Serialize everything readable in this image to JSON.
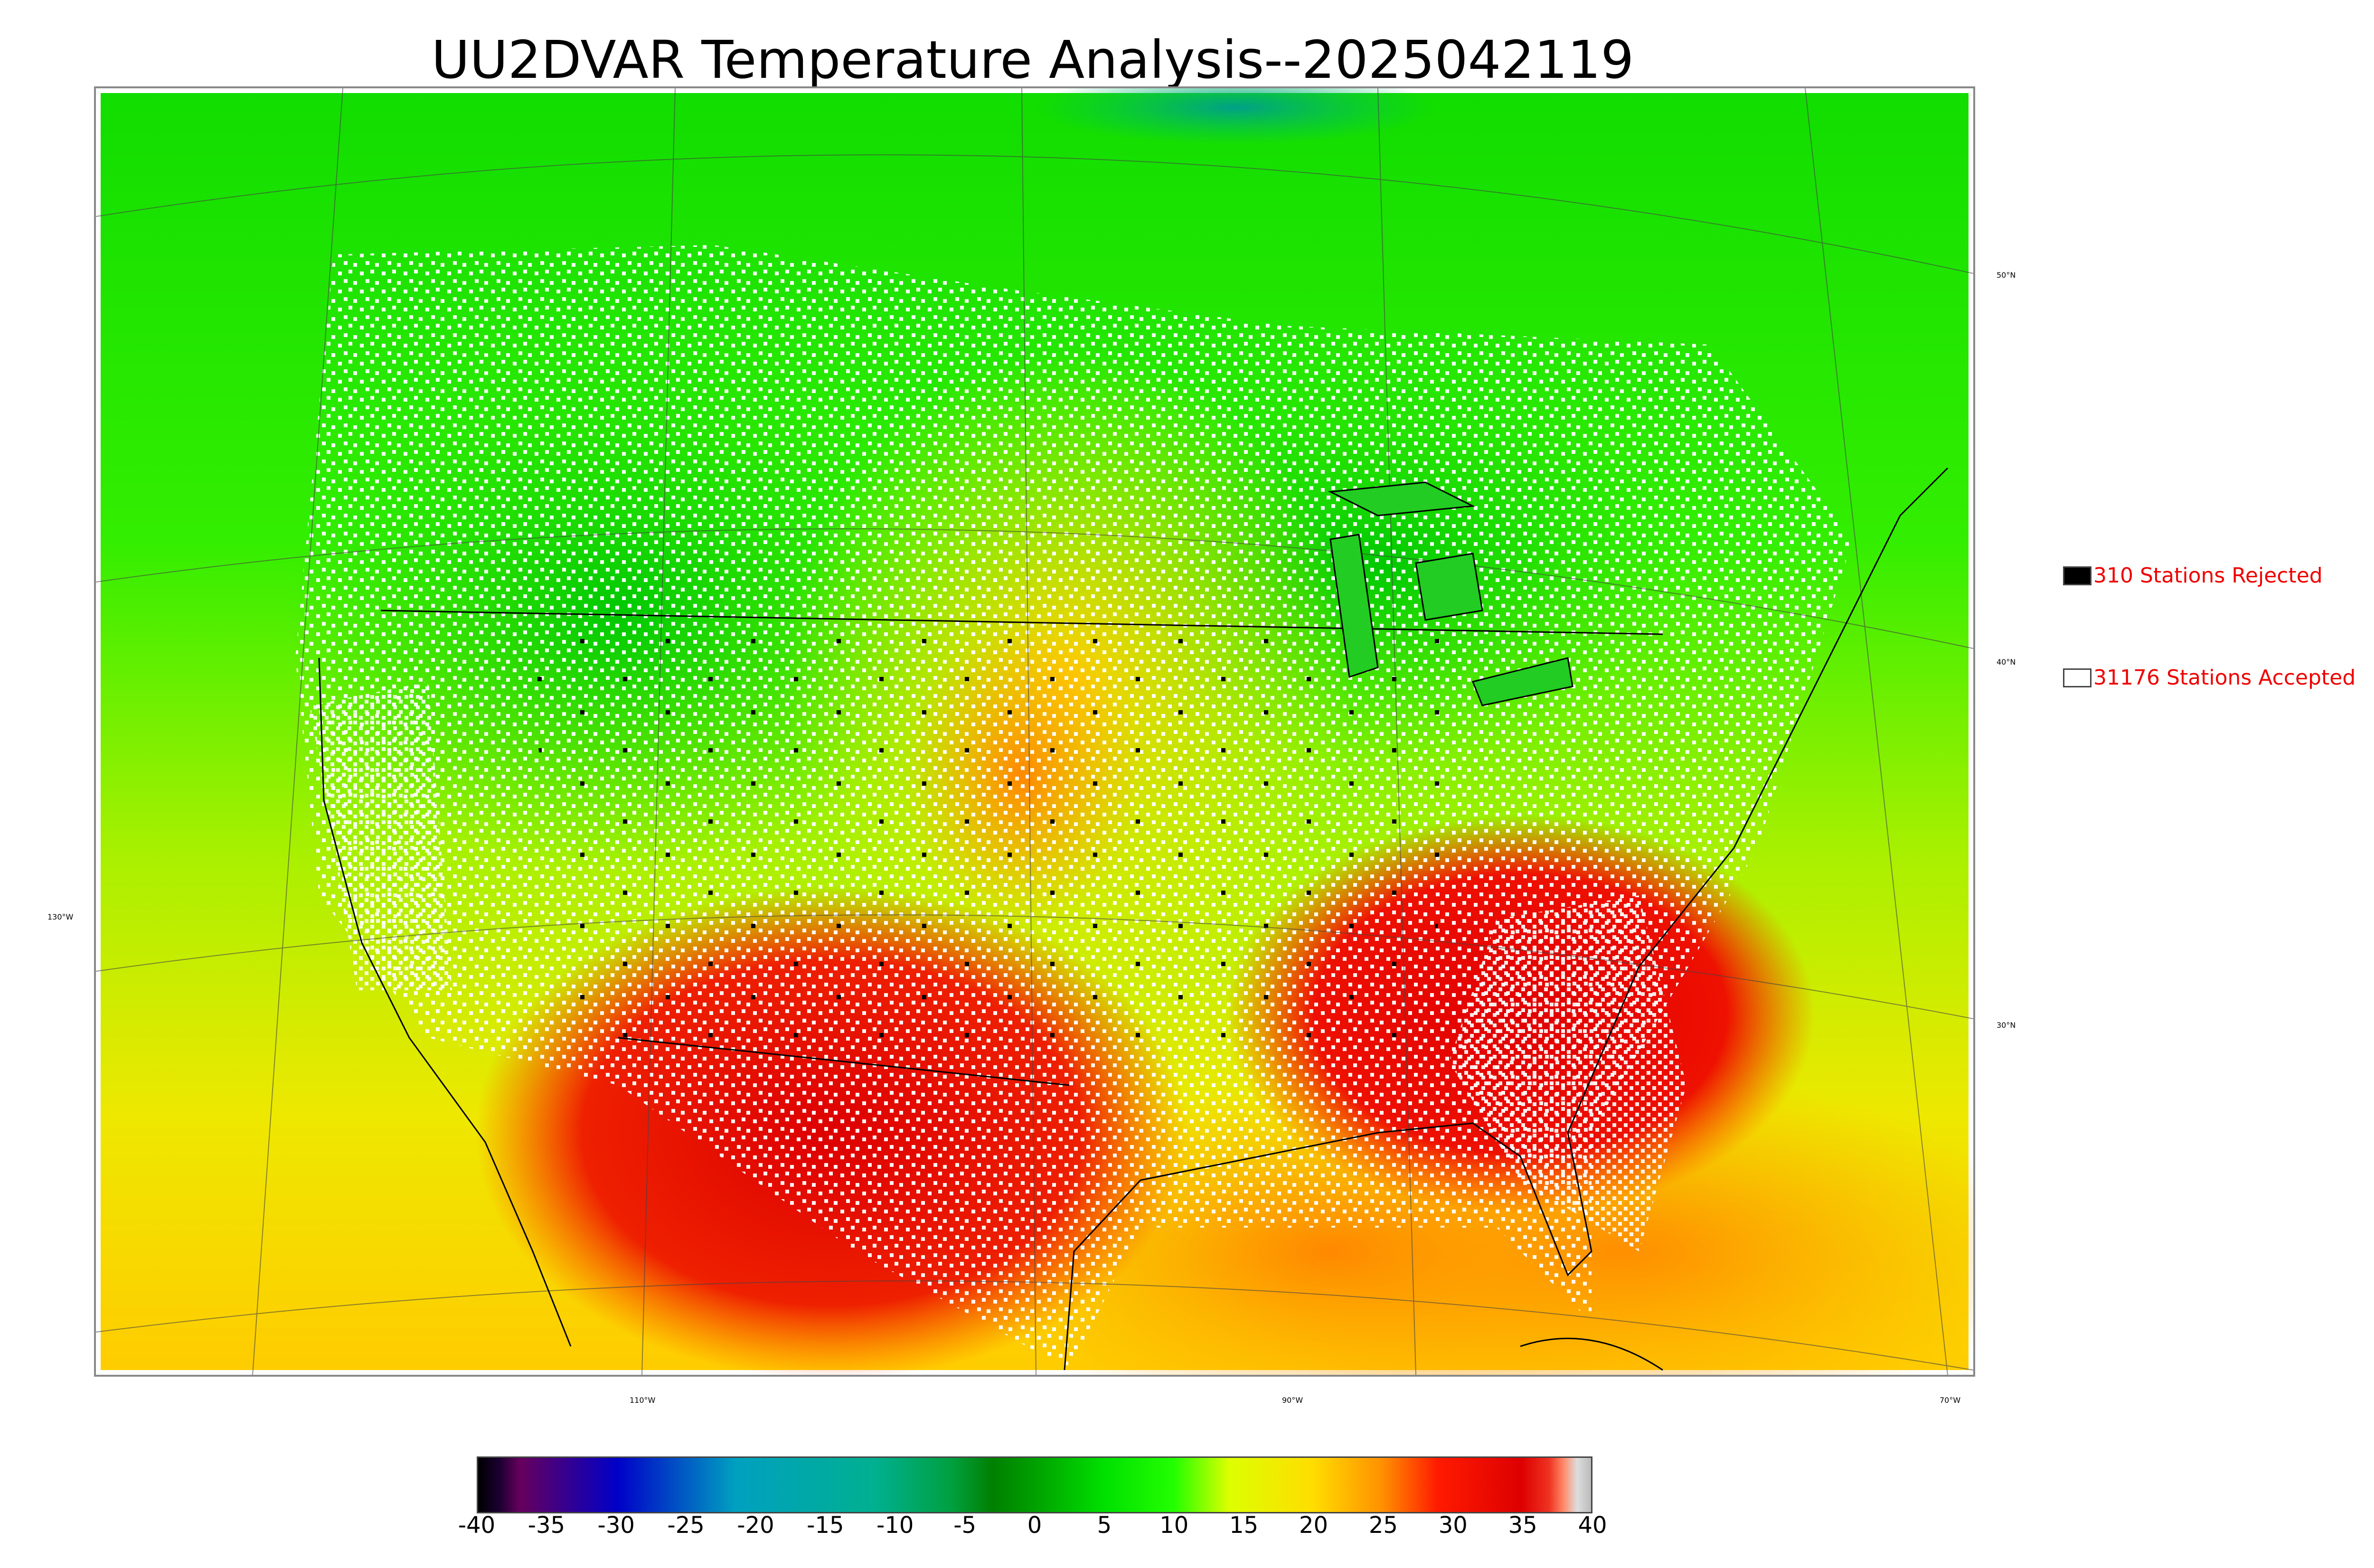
{
  "title": "UU2DVAR Temperature Analysis--2025042119",
  "legend": {
    "rejected": {
      "label": "310 Stations Rejected",
      "color": "#000000"
    },
    "accepted": {
      "label": "31176 Stations Accepted",
      "color": "#ffffff"
    },
    "text_color": "#ee0000"
  },
  "graticule": {
    "latitudes": [
      "50°N",
      "40°N",
      "30°N"
    ],
    "longitudes": [
      "130°W",
      "110°W",
      "90°W",
      "70°W"
    ]
  },
  "colorbar": {
    "ticks": [
      "-40",
      "-35",
      "-30",
      "-25",
      "-20",
      "-15",
      "-10",
      "-5",
      "0",
      "5",
      "10",
      "15",
      "20",
      "25",
      "30",
      "35",
      "40"
    ],
    "range": [
      -40,
      40
    ],
    "stops": [
      {
        "v": -40,
        "c": "#000000"
      },
      {
        "v": -38.5,
        "c": "#1a0030"
      },
      {
        "v": -37,
        "c": "#66005c"
      },
      {
        "v": -30,
        "c": "#0000c8"
      },
      {
        "v": -21.5,
        "c": "#00a0c0"
      },
      {
        "v": -11.5,
        "c": "#00b090"
      },
      {
        "v": -6,
        "c": "#00a040"
      },
      {
        "v": -3,
        "c": "#008000"
      },
      {
        "v": 0,
        "c": "#00a000"
      },
      {
        "v": 5,
        "c": "#00e000"
      },
      {
        "v": 10,
        "c": "#22ff00"
      },
      {
        "v": 14,
        "c": "#ddff00"
      },
      {
        "v": 20,
        "c": "#ffdd00"
      },
      {
        "v": 25,
        "c": "#ff9000"
      },
      {
        "v": 29,
        "c": "#ff1a00"
      },
      {
        "v": 35,
        "c": "#dd0000"
      },
      {
        "v": 37,
        "c": "#ee3322"
      },
      {
        "v": 38,
        "c": "#ff8866"
      },
      {
        "v": 39,
        "c": "#dddddd"
      },
      {
        "v": 40,
        "c": "#bbbbbb"
      }
    ]
  }
}
